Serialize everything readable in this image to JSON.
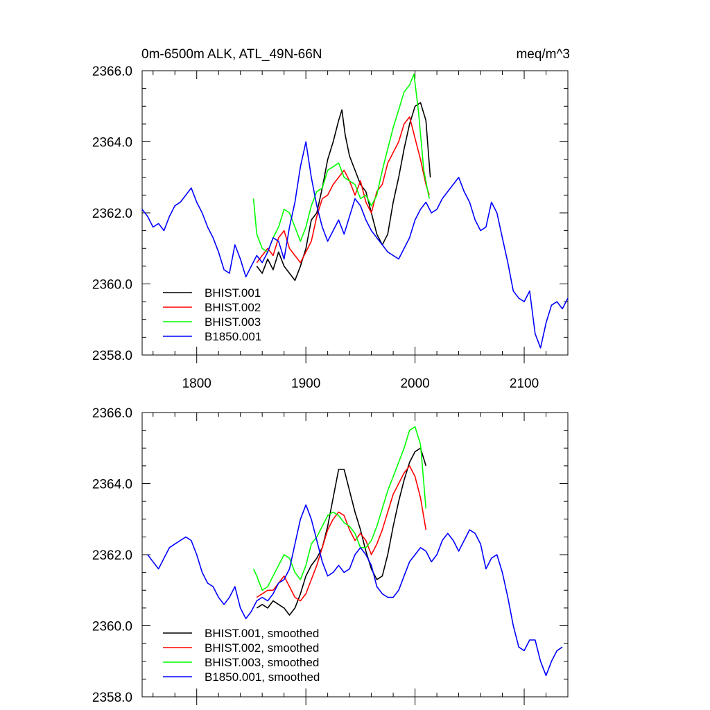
{
  "chart_data": [
    {
      "type": "line",
      "title_left": "0m-6500m ALK, ATL_49N-66N",
      "title_right": "meq/m^3",
      "xlim": [
        1750,
        2140
      ],
      "ylim": [
        2358,
        2366
      ],
      "yticks": [
        "2358.0",
        "2360.0",
        "2362.0",
        "2364.0",
        "2366.0"
      ],
      "xticks": [
        "1800",
        "1900",
        "2000",
        "2100"
      ],
      "legend_position": "bottom-left",
      "series": [
        {
          "name": "BHIST.001",
          "color": "#000000",
          "x": [
            1855,
            1860,
            1865,
            1870,
            1875,
            1880,
            1885,
            1890,
            1895,
            1900,
            1905,
            1910,
            1915,
            1920,
            1925,
            1930,
            1933,
            1936,
            1940,
            1945,
            1950,
            1955,
            1960,
            1965,
            1970,
            1975,
            1980,
            1985,
            1990,
            1995,
            2000,
            2005,
            2010,
            2014
          ],
          "y": [
            2360.5,
            2360.3,
            2360.7,
            2360.4,
            2360.9,
            2360.5,
            2360.3,
            2360.1,
            2360.5,
            2361.0,
            2361.8,
            2362.0,
            2362.7,
            2363.5,
            2364.0,
            2364.6,
            2364.9,
            2364.2,
            2363.6,
            2363.2,
            2362.8,
            2362.6,
            2362.0,
            2361.4,
            2361.1,
            2361.4,
            2362.3,
            2363.0,
            2363.8,
            2364.5,
            2365.0,
            2365.1,
            2364.6,
            2363.0
          ]
        },
        {
          "name": "BHIST.002",
          "color": "#ff0000",
          "x": [
            1855,
            1860,
            1865,
            1870,
            1875,
            1880,
            1885,
            1890,
            1895,
            1900,
            1905,
            1910,
            1915,
            1920,
            1925,
            1930,
            1935,
            1940,
            1945,
            1950,
            1955,
            1960,
            1965,
            1970,
            1975,
            1980,
            1985,
            1990,
            1995,
            2000,
            2005,
            2010,
            2013
          ],
          "y": [
            2360.6,
            2360.8,
            2361.0,
            2360.8,
            2361.3,
            2361.5,
            2361.0,
            2360.8,
            2360.6,
            2360.9,
            2361.2,
            2361.9,
            2362.4,
            2362.5,
            2362.8,
            2363.0,
            2363.2,
            2362.9,
            2362.5,
            2362.9,
            2362.3,
            2362.0,
            2362.6,
            2362.8,
            2363.4,
            2363.7,
            2364.0,
            2364.5,
            2364.7,
            2364.1,
            2363.5,
            2362.8,
            2362.5
          ]
        },
        {
          "name": "BHIST.003",
          "color": "#00ff00",
          "x": [
            1852,
            1855,
            1860,
            1865,
            1870,
            1875,
            1880,
            1885,
            1890,
            1895,
            1900,
            1905,
            1910,
            1915,
            1920,
            1925,
            1930,
            1935,
            1940,
            1945,
            1950,
            1955,
            1960,
            1965,
            1970,
            1975,
            1980,
            1985,
            1990,
            1995,
            1999,
            2003,
            2008,
            2013
          ],
          "y": [
            2362.4,
            2361.4,
            2361.0,
            2360.9,
            2361.3,
            2361.6,
            2362.1,
            2362.0,
            2361.6,
            2361.2,
            2361.6,
            2362.2,
            2362.6,
            2362.7,
            2363.2,
            2363.3,
            2363.4,
            2363.0,
            2362.9,
            2362.8,
            2362.4,
            2362.5,
            2362.2,
            2362.5,
            2363.2,
            2363.8,
            2364.4,
            2364.9,
            2365.4,
            2365.6,
            2365.9,
            2364.9,
            2363.2,
            2362.4
          ]
        },
        {
          "name": "B1850.001",
          "color": "#0000ff",
          "x": [
            1750,
            1755,
            1760,
            1765,
            1770,
            1775,
            1780,
            1785,
            1790,
            1795,
            1800,
            1805,
            1810,
            1815,
            1820,
            1825,
            1830,
            1835,
            1840,
            1845,
            1850,
            1855,
            1860,
            1865,
            1870,
            1875,
            1880,
            1885,
            1890,
            1895,
            1900,
            1905,
            1910,
            1915,
            1920,
            1925,
            1930,
            1935,
            1940,
            1945,
            1950,
            1955,
            1960,
            1965,
            1970,
            1975,
            1980,
            1985,
            1990,
            1995,
            2000,
            2005,
            2010,
            2015,
            2020,
            2025,
            2030,
            2035,
            2040,
            2045,
            2050,
            2055,
            2060,
            2065,
            2070,
            2075,
            2080,
            2085,
            2090,
            2095,
            2100,
            2105,
            2110,
            2115,
            2120,
            2125,
            2130,
            2135,
            2140
          ],
          "y": [
            2362.1,
            2361.9,
            2361.6,
            2361.7,
            2361.5,
            2361.9,
            2362.2,
            2362.3,
            2362.5,
            2362.7,
            2362.3,
            2362.0,
            2361.6,
            2361.3,
            2360.9,
            2360.4,
            2360.3,
            2361.1,
            2360.7,
            2360.2,
            2360.5,
            2360.8,
            2360.6,
            2360.9,
            2361.3,
            2361.2,
            2360.7,
            2361.6,
            2362.3,
            2363.3,
            2364.0,
            2363.0,
            2362.2,
            2361.6,
            2361.2,
            2361.5,
            2361.8,
            2361.4,
            2361.9,
            2362.4,
            2362.2,
            2361.8,
            2361.5,
            2361.3,
            2361.1,
            2360.9,
            2360.8,
            2360.7,
            2361.0,
            2361.3,
            2361.8,
            2362.1,
            2362.3,
            2362.0,
            2362.1,
            2362.4,
            2362.6,
            2362.8,
            2363.0,
            2362.6,
            2362.3,
            2361.8,
            2361.5,
            2361.6,
            2362.3,
            2362.0,
            2361.3,
            2360.6,
            2359.8,
            2359.6,
            2359.5,
            2359.8,
            2358.6,
            2358.2,
            2358.9,
            2359.4,
            2359.5,
            2359.3,
            2359.6
          ]
        }
      ]
    },
    {
      "type": "line",
      "xlim": [
        1750,
        2140
      ],
      "ylim": [
        2358,
        2366
      ],
      "yticks": [
        "2358.0",
        "2360.0",
        "2362.0",
        "2364.0",
        "2366.0"
      ],
      "legend_position": "bottom-left",
      "series": [
        {
          "name": "BHIST.001, smoothed",
          "color": "#000000",
          "x": [
            1855,
            1860,
            1865,
            1870,
            1875,
            1880,
            1885,
            1890,
            1895,
            1900,
            1905,
            1910,
            1915,
            1920,
            1925,
            1930,
            1935,
            1940,
            1945,
            1950,
            1955,
            1960,
            1965,
            1970,
            1975,
            1980,
            1985,
            1990,
            1995,
            2000,
            2005,
            2010
          ],
          "y": [
            2360.5,
            2360.6,
            2360.5,
            2360.7,
            2360.6,
            2360.5,
            2360.3,
            2360.5,
            2360.9,
            2361.4,
            2361.7,
            2361.9,
            2362.2,
            2362.8,
            2363.6,
            2364.4,
            2364.4,
            2363.8,
            2363.2,
            2362.7,
            2362.1,
            2361.6,
            2361.3,
            2361.4,
            2362.0,
            2362.8,
            2363.5,
            2364.1,
            2364.6,
            2364.9,
            2365.0,
            2364.5
          ]
        },
        {
          "name": "BHIST.002, smoothed",
          "color": "#ff0000",
          "x": [
            1855,
            1860,
            1865,
            1870,
            1875,
            1880,
            1885,
            1890,
            1895,
            1900,
            1905,
            1910,
            1915,
            1920,
            1925,
            1930,
            1935,
            1940,
            1945,
            1950,
            1955,
            1960,
            1965,
            1970,
            1975,
            1980,
            1985,
            1990,
            1995,
            2000,
            2005,
            2010
          ],
          "y": [
            2360.8,
            2360.9,
            2361.0,
            2361.0,
            2361.2,
            2361.4,
            2361.1,
            2360.8,
            2360.7,
            2360.9,
            2361.3,
            2361.7,
            2362.2,
            2362.7,
            2363.0,
            2363.2,
            2363.1,
            2362.7,
            2362.4,
            2362.6,
            2362.4,
            2362.0,
            2362.3,
            2362.7,
            2363.2,
            2363.7,
            2364.0,
            2364.3,
            2364.5,
            2364.2,
            2363.6,
            2362.7
          ]
        },
        {
          "name": "BHIST.003, smoothed",
          "color": "#00ff00",
          "x": [
            1852,
            1855,
            1860,
            1865,
            1870,
            1875,
            1880,
            1885,
            1890,
            1895,
            1900,
            1905,
            1910,
            1915,
            1920,
            1925,
            1930,
            1935,
            1940,
            1945,
            1950,
            1955,
            1960,
            1965,
            1970,
            1975,
            1980,
            1985,
            1990,
            1995,
            2000,
            2005,
            2010
          ],
          "y": [
            2361.6,
            2361.4,
            2361.0,
            2361.1,
            2361.4,
            2361.7,
            2362.0,
            2361.9,
            2361.5,
            2361.3,
            2361.7,
            2362.3,
            2362.5,
            2362.8,
            2363.1,
            2363.2,
            2363.1,
            2362.9,
            2362.8,
            2362.6,
            2362.2,
            2362.2,
            2362.4,
            2362.8,
            2363.3,
            2363.8,
            2364.2,
            2364.6,
            2365.0,
            2365.5,
            2365.6,
            2365.1,
            2363.3
          ]
        },
        {
          "name": "B1850.001, smoothed",
          "color": "#0000ff",
          "x": [
            1755,
            1760,
            1765,
            1770,
            1775,
            1780,
            1785,
            1790,
            1795,
            1800,
            1805,
            1810,
            1815,
            1820,
            1825,
            1830,
            1835,
            1840,
            1845,
            1850,
            1855,
            1860,
            1865,
            1870,
            1875,
            1880,
            1885,
            1890,
            1895,
            1900,
            1905,
            1910,
            1915,
            1920,
            1925,
            1930,
            1935,
            1940,
            1945,
            1950,
            1955,
            1960,
            1965,
            1970,
            1975,
            1980,
            1985,
            1990,
            1995,
            2000,
            2005,
            2010,
            2015,
            2020,
            2025,
            2030,
            2035,
            2040,
            2045,
            2050,
            2055,
            2060,
            2065,
            2070,
            2075,
            2080,
            2085,
            2090,
            2095,
            2100,
            2105,
            2110,
            2115,
            2120,
            2125,
            2130,
            2135
          ],
          "y": [
            2362.0,
            2361.8,
            2361.6,
            2361.9,
            2362.2,
            2362.3,
            2362.4,
            2362.5,
            2362.4,
            2362.0,
            2361.5,
            2361.2,
            2361.1,
            2360.8,
            2360.6,
            2360.8,
            2361.1,
            2360.5,
            2360.2,
            2360.4,
            2360.7,
            2360.8,
            2360.7,
            2360.9,
            2361.2,
            2361.3,
            2361.6,
            2362.3,
            2363.0,
            2363.4,
            2363.0,
            2362.4,
            2361.8,
            2361.4,
            2361.5,
            2361.7,
            2361.5,
            2361.6,
            2362.0,
            2362.2,
            2362.0,
            2361.7,
            2361.1,
            2360.9,
            2360.8,
            2360.8,
            2361.0,
            2361.4,
            2361.8,
            2362.0,
            2362.2,
            2362.1,
            2361.8,
            2362.0,
            2362.4,
            2362.6,
            2362.4,
            2362.1,
            2362.4,
            2362.7,
            2362.6,
            2362.3,
            2361.6,
            2361.9,
            2362.0,
            2361.5,
            2360.8,
            2360.0,
            2359.4,
            2359.3,
            2359.6,
            2359.6,
            2359.0,
            2358.6,
            2359.0,
            2359.3,
            2359.4
          ]
        }
      ]
    }
  ]
}
